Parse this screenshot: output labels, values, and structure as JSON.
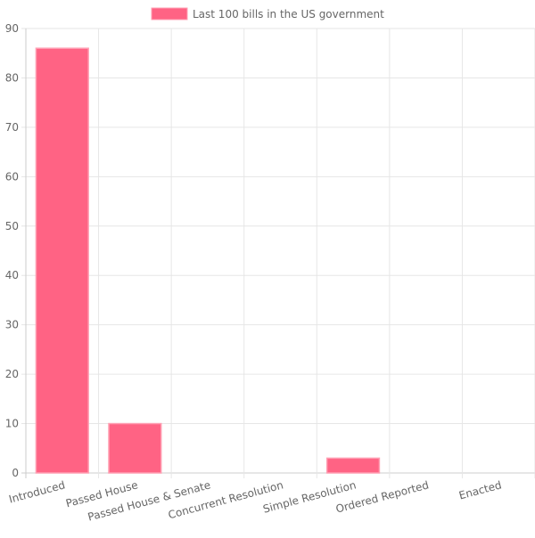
{
  "chart_data": {
    "type": "bar",
    "title": "",
    "xlabel": "",
    "ylabel": "",
    "categories": [
      "Introduced",
      "Passed House",
      "Passed House & Senate",
      "Concurrent Resolution",
      "Simple Resolution",
      "Ordered Reported",
      "Enacted"
    ],
    "series": [
      {
        "name": "Last 100 bills in the US government",
        "values": [
          86,
          10,
          0,
          0,
          3,
          0,
          0
        ]
      }
    ],
    "ylim": [
      0,
      90
    ],
    "yticks": [
      0,
      10,
      20,
      30,
      40,
      50,
      60,
      70,
      80,
      90
    ],
    "grid": true,
    "legend_position": "top"
  },
  "colors": {
    "bar_fill": "#ff6384",
    "bar_border": "#ff9fb3",
    "grid": "#e6e6e6",
    "axis": "#cccccc",
    "text": "#666666"
  }
}
